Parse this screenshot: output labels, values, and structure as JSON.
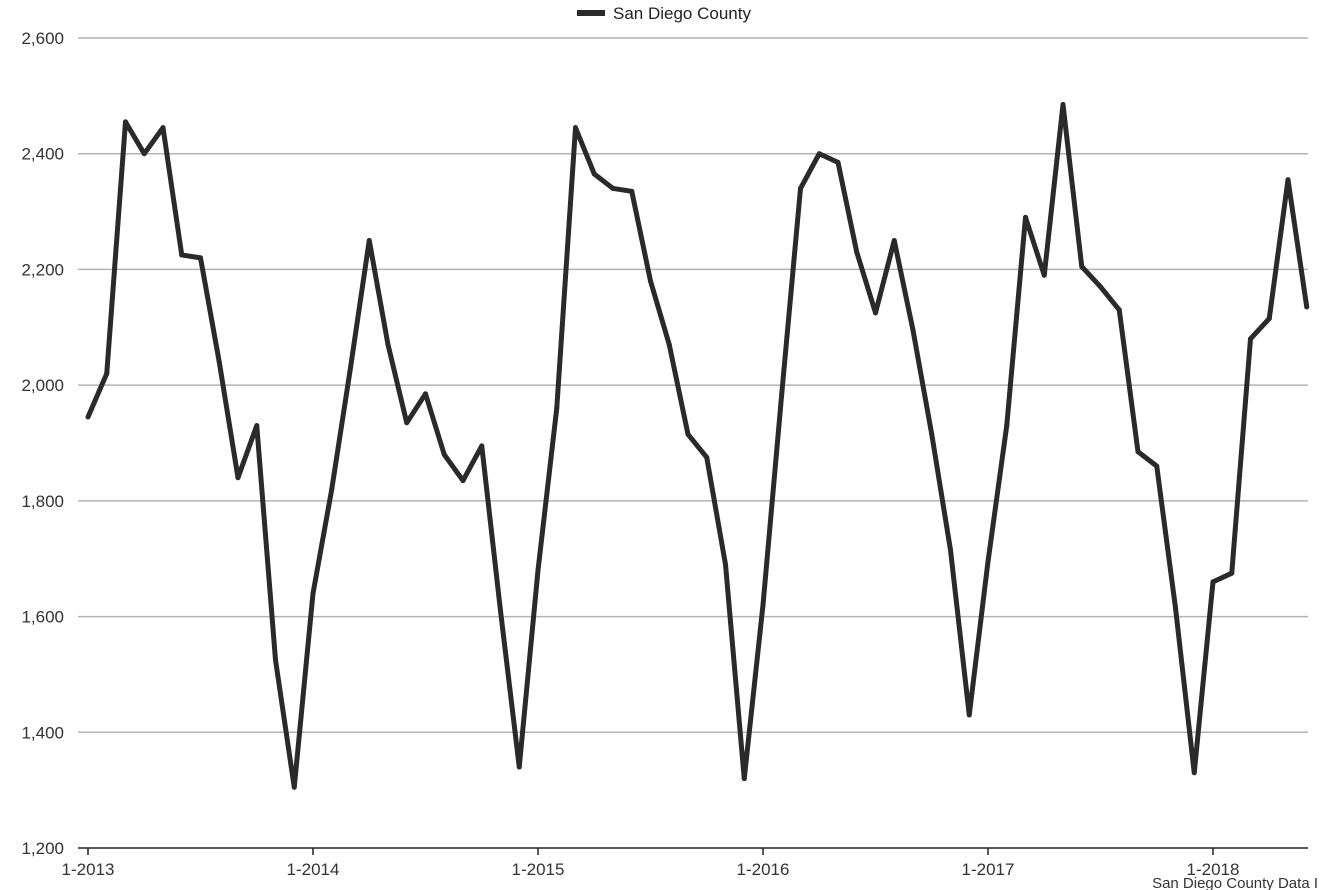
{
  "chart_data": {
    "type": "line",
    "title": "",
    "xlabel": "",
    "ylabel": "",
    "ylim": [
      1200,
      2600
    ],
    "y_ticks": [
      "1,200",
      "1,400",
      "1,600",
      "1,800",
      "2,000",
      "2,200",
      "2,400",
      "2,600"
    ],
    "y_tick_values": [
      1200,
      1400,
      1600,
      1800,
      2000,
      2200,
      2400,
      2600
    ],
    "x_ticks": [
      "1-2013",
      "1-2014",
      "1-2015",
      "1-2016",
      "1-2017",
      "1-2018"
    ],
    "grid": "horizontal",
    "legend_position": "top-center",
    "line_color": "#2a2a2a",
    "grid_color": "#b3b3b3",
    "series": [
      {
        "name": "San Diego County",
        "start": "1-2013",
        "frequency": "monthly",
        "values": [
          1945,
          2020,
          2455,
          2400,
          2445,
          2225,
          2220,
          2040,
          1840,
          1930,
          1525,
          1305,
          1640,
          1820,
          2030,
          2250,
          2070,
          1935,
          1985,
          1880,
          1835,
          1895,
          1610,
          1340,
          1680,
          1960,
          2445,
          2365,
          2340,
          2335,
          2180,
          2070,
          1915,
          1875,
          1690,
          1320,
          1620,
          1985,
          2340,
          2400,
          2385,
          2230,
          2125,
          2250,
          2095,
          1915,
          1715,
          1430,
          1695,
          1930,
          2290,
          2190,
          2485,
          2205,
          2170,
          2130,
          1885,
          1860,
          1615,
          1330,
          1660,
          1675,
          2080,
          2115,
          2355,
          2135
        ]
      }
    ],
    "source_note": "San Diego County Data I"
  }
}
